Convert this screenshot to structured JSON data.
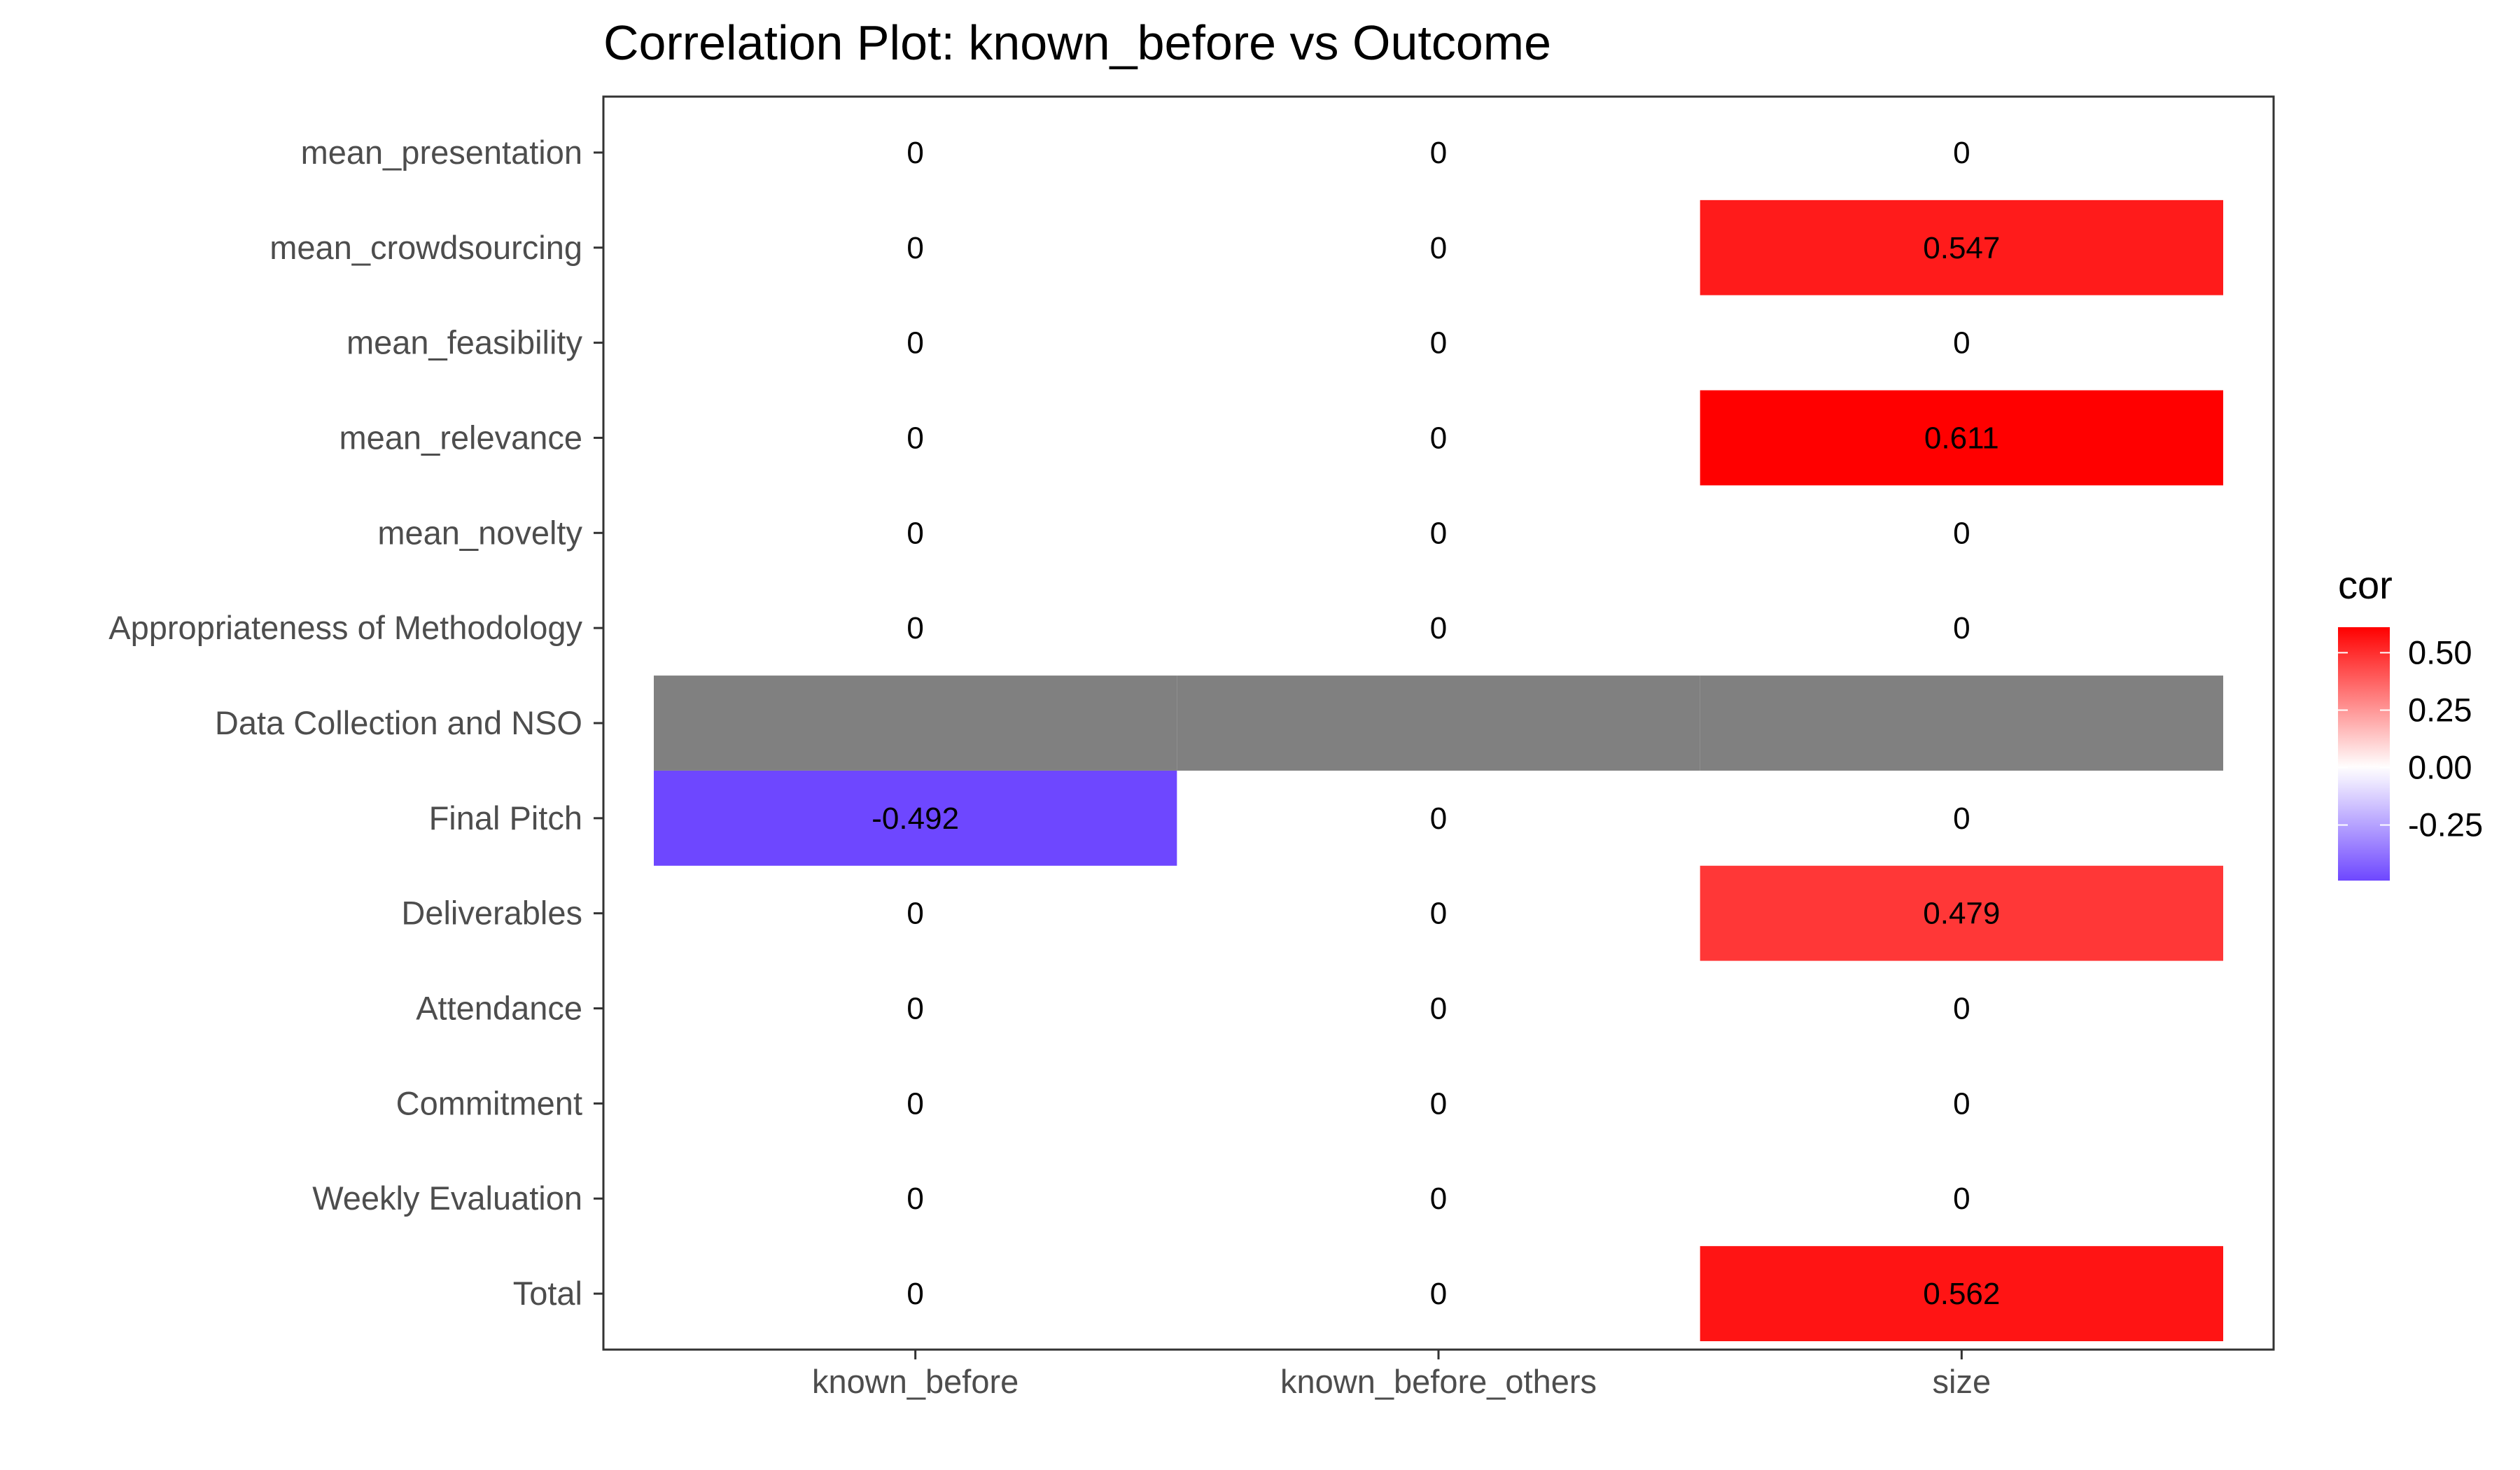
{
  "chart_data": {
    "type": "heatmap",
    "title": "Correlation Plot: known_before vs Outcome",
    "xlabel": "",
    "ylabel": "",
    "columns": [
      "known_before",
      "known_before_others",
      "size"
    ],
    "rows": [
      "mean_presentation",
      "mean_crowdsourcing",
      "mean_feasibility",
      "mean_relevance",
      "mean_novelty",
      "Appropriateness of Methodology",
      "Data Collection and NSO",
      "Final Pitch",
      "Deliverables",
      "Attendance",
      "Commitment",
      "Weekly Evaluation",
      "Total"
    ],
    "values": [
      [
        0,
        0,
        0
      ],
      [
        0,
        0,
        0.547
      ],
      [
        0,
        0,
        0
      ],
      [
        0,
        0,
        0.611
      ],
      [
        0,
        0,
        0
      ],
      [
        0,
        0,
        0
      ],
      [
        null,
        null,
        null
      ],
      [
        -0.492,
        0,
        0
      ],
      [
        0,
        0,
        0.479
      ],
      [
        0,
        0,
        0
      ],
      [
        0,
        0,
        0
      ],
      [
        0,
        0,
        0
      ],
      [
        0,
        0,
        0.562
      ]
    ],
    "labels": [
      [
        "0",
        "0",
        "0"
      ],
      [
        "0",
        "0",
        "0.547"
      ],
      [
        "0",
        "0",
        "0"
      ],
      [
        "0",
        "0",
        "0.611"
      ],
      [
        "0",
        "0",
        "0"
      ],
      [
        "0",
        "0",
        "0"
      ],
      [
        "",
        "",
        ""
      ],
      [
        "-0.492",
        "0",
        "0"
      ],
      [
        "0",
        "0",
        "0.479"
      ],
      [
        "0",
        "0",
        "0"
      ],
      [
        "0",
        "0",
        "0"
      ],
      [
        "0",
        "0",
        "0"
      ],
      [
        "0",
        "0",
        "0.562"
      ]
    ],
    "legend": {
      "title": "cor",
      "ticks": [
        0.5,
        0.25,
        0,
        -0.25
      ],
      "tick_labels": [
        "0.50",
        "0.25",
        "0.00",
        "-0.25"
      ],
      "range": [
        -0.492,
        0.611
      ],
      "placement": "right"
    },
    "colors": {
      "low": "#6e47ff",
      "mid": "#ffffff",
      "high": "#ff0000",
      "na": "#808080"
    },
    "zero_cells_transparent": true
  }
}
